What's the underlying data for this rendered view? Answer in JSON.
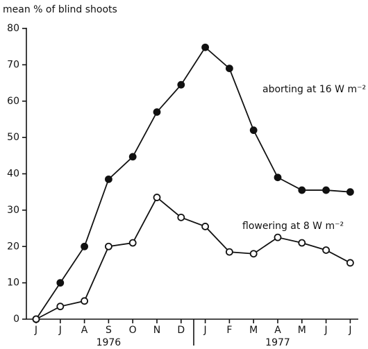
{
  "chart_data": {
    "type": "line",
    "y_label": "mean % of blind shoots",
    "categories": [
      "J",
      "J",
      "A",
      "S",
      "O",
      "N",
      "D",
      "J",
      "F",
      "M",
      "A",
      "M",
      "J",
      "J"
    ],
    "series": [
      {
        "name": "aborting at 16 W m⁻²",
        "color": "#111111",
        "marker": "filled",
        "values": [
          0,
          10,
          20,
          38.5,
          44.7,
          57,
          64.5,
          74.8,
          69,
          52,
          39,
          35.5,
          35.5,
          35
        ]
      },
      {
        "name": "flowering at 8 W m⁻²",
        "color": "#111111",
        "marker": "open",
        "values": [
          0,
          3.5,
          5,
          20,
          21,
          33.5,
          28,
          25.5,
          18.5,
          18,
          22.5,
          21,
          19,
          15.5
        ]
      }
    ],
    "annotations": [
      "1976",
      "1977"
    ],
    "ylim": [
      0,
      80
    ],
    "yticks": [
      0,
      10,
      20,
      30,
      40,
      50,
      60,
      70,
      80
    ],
    "grid": false
  }
}
